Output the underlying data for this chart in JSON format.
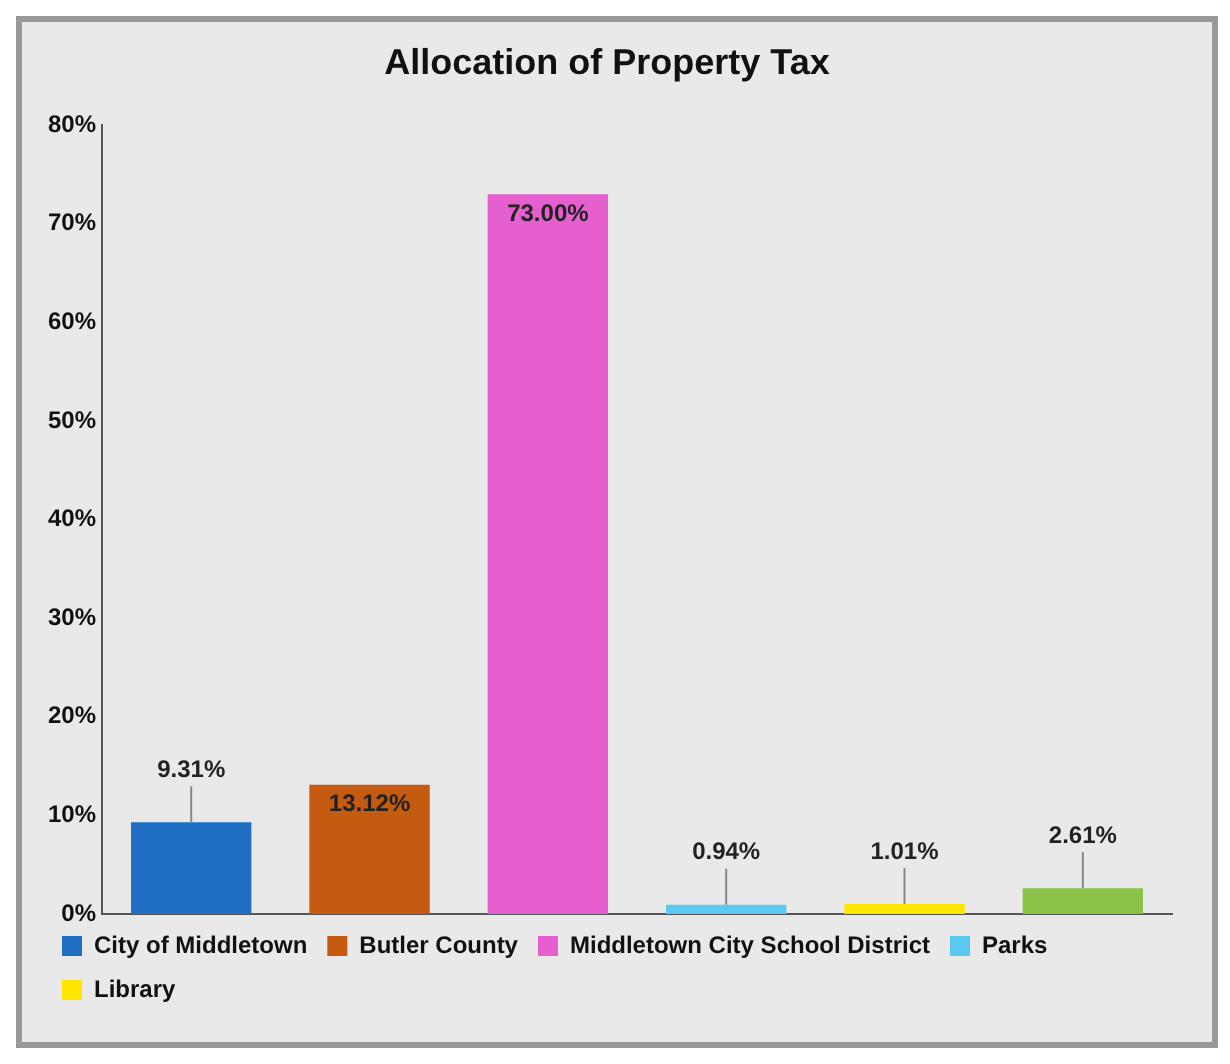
{
  "chart_data": {
    "type": "bar",
    "title": "Allocation of Property Tax",
    "categories": [
      null,
      null,
      null,
      null,
      null,
      null
    ],
    "series": [
      {
        "name": "City of Middletown",
        "color": "#1f6fc5",
        "values": [
          9.31,
          null,
          null,
          null,
          null,
          null
        ]
      },
      {
        "name": "Butler County",
        "color": "#c55a11",
        "values": [
          null,
          13.12,
          null,
          null,
          null,
          null
        ]
      },
      {
        "name": "Middletown City School District",
        "color": "#e55fcf",
        "values": [
          null,
          null,
          73.0,
          null,
          null,
          null
        ]
      },
      {
        "name": "Parks",
        "color": "#5bc8ef",
        "values": [
          null,
          null,
          null,
          0.94,
          null,
          null
        ]
      },
      {
        "name": "Library",
        "color": "#ffe600",
        "values": [
          null,
          null,
          null,
          null,
          1.01,
          null
        ]
      },
      {
        "color": "#8bc34a",
        "values": [
          null,
          null,
          null,
          null,
          null,
          2.61
        ]
      }
    ],
    "value_labels": [
      "9.31%",
      "13.12%",
      "73.00%",
      "0.94%",
      "1.01%",
      "2.61%"
    ],
    "ylim": [
      0,
      80
    ],
    "yticks": [
      {
        "value": 0,
        "label": "0%"
      },
      {
        "value": 10,
        "label": "10%"
      },
      {
        "value": 20,
        "label": "20%"
      },
      {
        "value": 30,
        "label": "30%"
      },
      {
        "value": 40,
        "label": "40%"
      },
      {
        "value": 50,
        "label": "50%"
      },
      {
        "value": 60,
        "label": "60%"
      },
      {
        "value": 70,
        "label": "70%"
      },
      {
        "value": 80,
        "label": "80%"
      }
    ],
    "grid": false,
    "legend": "bottom"
  }
}
